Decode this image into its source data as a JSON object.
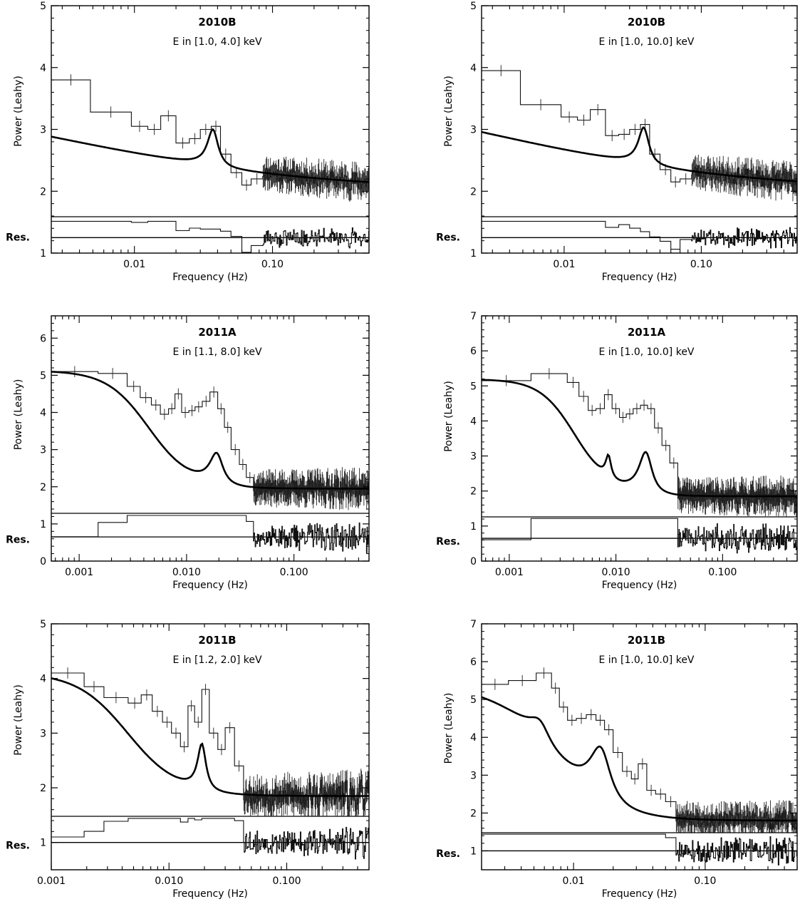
{
  "chart_data": [
    {
      "type": "line",
      "title": "2010B",
      "subtitle": "E in [1.0, 4.0] keV",
      "xlabel": "Frequency (Hz)",
      "ylabel": "Power (Leahy)",
      "residual_label": "Res.",
      "xscale": "log",
      "xlim": [
        0.0025,
        0.5
      ],
      "ylim": [
        1,
        5
      ],
      "x_ticks": [
        0.01,
        0.1
      ],
      "x_tick_labels": [
        "0.01",
        "0.10"
      ],
      "y_ticks": [
        1,
        2,
        3,
        4,
        5
      ],
      "y_tick_labels": [
        "1",
        "2",
        "3",
        "4",
        "5"
      ],
      "residual_baseline": 1.25,
      "residual_top": 1.6,
      "model": {
        "baseline": 2.0,
        "lowfreq_amp": 1.75,
        "lowfreq_break": 0.0025,
        "lowfreq_index": 0.45,
        "qpos": [
          [
            0.037,
            1.0,
            0.22
          ]
        ]
      },
      "histogram_bins": [
        {
          "x0": 0.0025,
          "x1": 0.0048,
          "y": 3.8
        },
        {
          "x0": 0.0048,
          "x1": 0.0095,
          "y": 3.28
        },
        {
          "x0": 0.0095,
          "x1": 0.0125,
          "y": 3.05
        },
        {
          "x0": 0.0125,
          "x1": 0.0155,
          "y": 3.0
        },
        {
          "x0": 0.0155,
          "x1": 0.02,
          "y": 3.22
        },
        {
          "x0": 0.02,
          "x1": 0.025,
          "y": 2.78
        },
        {
          "x0": 0.025,
          "x1": 0.03,
          "y": 2.85
        },
        {
          "x0": 0.03,
          "x1": 0.036,
          "y": 3.0
        },
        {
          "x0": 0.036,
          "x1": 0.042,
          "y": 3.05
        },
        {
          "x0": 0.042,
          "x1": 0.05,
          "y": 2.6
        },
        {
          "x0": 0.05,
          "x1": 0.06,
          "y": 2.3
        },
        {
          "x0": 0.06,
          "x1": 0.07,
          "y": 2.1
        },
        {
          "x0": 0.07,
          "x1": 0.085,
          "y": 2.2
        }
      ],
      "noise_start": 0.085,
      "noise_amp": 0.12,
      "seed": 11
    },
    {
      "type": "line",
      "title": "2010B",
      "subtitle": "E in [1.0, 10.0] keV",
      "xlabel": "Frequency (Hz)",
      "ylabel": "Power (Leahy)",
      "residual_label": "Res.",
      "xscale": "log",
      "xlim": [
        0.0025,
        0.5
      ],
      "ylim": [
        1,
        5
      ],
      "x_ticks": [
        0.01,
        0.1
      ],
      "x_tick_labels": [
        "0.01",
        "0.10"
      ],
      "y_ticks": [
        1,
        2,
        3,
        4,
        5
      ],
      "y_tick_labels": [
        "1",
        "2",
        "3",
        "4",
        "5"
      ],
      "residual_baseline": 1.25,
      "residual_top": 1.6,
      "model": {
        "baseline": 2.0,
        "lowfreq_amp": 1.9,
        "lowfreq_break": 0.0025,
        "lowfreq_index": 0.45,
        "qpos": [
          [
            0.038,
            1.0,
            0.22
          ]
        ]
      },
      "histogram_bins": [
        {
          "x0": 0.0025,
          "x1": 0.0048,
          "y": 3.95
        },
        {
          "x0": 0.0048,
          "x1": 0.0095,
          "y": 3.4
        },
        {
          "x0": 0.0095,
          "x1": 0.0125,
          "y": 3.2
        },
        {
          "x0": 0.0125,
          "x1": 0.0155,
          "y": 3.15
        },
        {
          "x0": 0.0155,
          "x1": 0.02,
          "y": 3.32
        },
        {
          "x0": 0.02,
          "x1": 0.025,
          "y": 2.9
        },
        {
          "x0": 0.025,
          "x1": 0.03,
          "y": 2.92
        },
        {
          "x0": 0.03,
          "x1": 0.036,
          "y": 3.0
        },
        {
          "x0": 0.036,
          "x1": 0.042,
          "y": 3.08
        },
        {
          "x0": 0.042,
          "x1": 0.05,
          "y": 2.6
        },
        {
          "x0": 0.05,
          "x1": 0.06,
          "y": 2.35
        },
        {
          "x0": 0.06,
          "x1": 0.07,
          "y": 2.15
        },
        {
          "x0": 0.07,
          "x1": 0.085,
          "y": 2.2
        }
      ],
      "noise_start": 0.085,
      "noise_amp": 0.12,
      "seed": 23
    },
    {
      "type": "line",
      "title": "2011A",
      "subtitle": "E in [1.1, 8.0] keV",
      "xlabel": "Frequency (Hz)",
      "ylabel": "Power (Leahy)",
      "residual_label": "Res.",
      "xscale": "log",
      "xlim": [
        0.00055,
        0.5
      ],
      "ylim": [
        0,
        6.6
      ],
      "x_ticks": [
        0.001,
        0.01,
        0.1
      ],
      "x_tick_labels": [
        "0.001",
        "0.010",
        "0.100"
      ],
      "y_ticks": [
        0,
        1,
        2,
        3,
        4,
        5,
        6
      ],
      "y_tick_labels": [
        "0",
        "1",
        "2",
        "3",
        "4",
        "5",
        "6"
      ],
      "residual_baseline": 0.65,
      "residual_top": 1.3,
      "model": {
        "baseline": 1.95,
        "lowfreq_amp": 3.15,
        "lowfreq_break": 0.0045,
        "lowfreq_index": 2.2,
        "qpos": [
          [
            0.019,
            1.4,
            0.35
          ]
        ]
      },
      "histogram_bins": [
        {
          "x0": 0.00055,
          "x1": 0.0015,
          "y": 5.1
        },
        {
          "x0": 0.0015,
          "x1": 0.0028,
          "y": 5.05
        },
        {
          "x0": 0.0028,
          "x1": 0.0037,
          "y": 4.7
        },
        {
          "x0": 0.0037,
          "x1": 0.0047,
          "y": 4.4
        },
        {
          "x0": 0.0047,
          "x1": 0.0057,
          "y": 4.2
        },
        {
          "x0": 0.0057,
          "x1": 0.0068,
          "y": 3.95
        },
        {
          "x0": 0.0068,
          "x1": 0.0078,
          "y": 4.1
        },
        {
          "x0": 0.0078,
          "x1": 0.009,
          "y": 4.5
        },
        {
          "x0": 0.009,
          "x1": 0.0105,
          "y": 4.0
        },
        {
          "x0": 0.0105,
          "x1": 0.012,
          "y": 4.05
        },
        {
          "x0": 0.012,
          "x1": 0.014,
          "y": 4.15
        },
        {
          "x0": 0.014,
          "x1": 0.0165,
          "y": 4.3
        },
        {
          "x0": 0.0165,
          "x1": 0.0195,
          "y": 4.55
        },
        {
          "x0": 0.0195,
          "x1": 0.0225,
          "y": 4.1
        },
        {
          "x0": 0.0225,
          "x1": 0.026,
          "y": 3.6
        },
        {
          "x0": 0.026,
          "x1": 0.031,
          "y": 3.0
        },
        {
          "x0": 0.031,
          "x1": 0.036,
          "y": 2.6
        },
        {
          "x0": 0.036,
          "x1": 0.042,
          "y": 2.25
        }
      ],
      "noise_start": 0.042,
      "noise_amp": 0.2,
      "seed": 37
    },
    {
      "type": "line",
      "title": "2011A",
      "subtitle": "E in [1.0, 10.0] keV",
      "xlabel": "Frequency (Hz)",
      "ylabel": "Power (Leahy)",
      "residual_label": "Res.",
      "xscale": "log",
      "xlim": [
        0.00055,
        0.5
      ],
      "ylim": [
        0,
        7
      ],
      "x_ticks": [
        0.001,
        0.01,
        0.1
      ],
      "x_tick_labels": [
        "0.001",
        "0.010",
        "0.100"
      ],
      "y_ticks": [
        0,
        1,
        2,
        3,
        4,
        5,
        6,
        7
      ],
      "y_tick_labels": [
        "0",
        "1",
        "2",
        "3",
        "4",
        "5",
        "6",
        "7"
      ],
      "residual_baseline": 0.65,
      "residual_top": 1.3,
      "model": {
        "baseline": 1.85,
        "lowfreq_amp": 3.3,
        "lowfreq_break": 0.0042,
        "lowfreq_index": 2.6,
        "qpos": [
          [
            0.0085,
            1.05,
            0.14
          ],
          [
            0.019,
            2.0,
            0.35
          ]
        ]
      },
      "histogram_bins": [
        {
          "x0": 0.00055,
          "x1": 0.0016,
          "y": 5.15
        },
        {
          "x0": 0.0016,
          "x1": 0.0035,
          "y": 5.35
        },
        {
          "x0": 0.0035,
          "x1": 0.0045,
          "y": 5.1
        },
        {
          "x0": 0.0045,
          "x1": 0.0055,
          "y": 4.7
        },
        {
          "x0": 0.0055,
          "x1": 0.0065,
          "y": 4.3
        },
        {
          "x0": 0.0065,
          "x1": 0.0078,
          "y": 4.35
        },
        {
          "x0": 0.0078,
          "x1": 0.0092,
          "y": 4.75
        },
        {
          "x0": 0.0092,
          "x1": 0.0108,
          "y": 4.35
        },
        {
          "x0": 0.0108,
          "x1": 0.0125,
          "y": 4.1
        },
        {
          "x0": 0.0125,
          "x1": 0.0145,
          "y": 4.2
        },
        {
          "x0": 0.0145,
          "x1": 0.017,
          "y": 4.35
        },
        {
          "x0": 0.017,
          "x1": 0.0198,
          "y": 4.45
        },
        {
          "x0": 0.0198,
          "x1": 0.023,
          "y": 4.35
        },
        {
          "x0": 0.023,
          "x1": 0.027,
          "y": 3.8
        },
        {
          "x0": 0.027,
          "x1": 0.032,
          "y": 3.3
        },
        {
          "x0": 0.032,
          "x1": 0.038,
          "y": 2.8
        }
      ],
      "noise_start": 0.038,
      "noise_amp": 0.2,
      "seed": 41
    },
    {
      "type": "line",
      "title": "2011B",
      "subtitle": "E in [1.2, 2.0] keV",
      "xlabel": "Frequency (Hz)",
      "ylabel": "Power (Leahy)",
      "residual_label": "Res.",
      "xscale": "log",
      "xlim": [
        0.001,
        0.5
      ],
      "ylim": [
        0.5,
        5
      ],
      "x_ticks": [
        0.001,
        0.01,
        0.1
      ],
      "x_tick_labels": [
        "0.001",
        "0.010",
        "0.100"
      ],
      "y_ticks": [
        1,
        2,
        3,
        4,
        5
      ],
      "y_tick_labels": [
        "1",
        "2",
        "3",
        "4",
        "5"
      ],
      "residual_baseline": 1.0,
      "residual_top": 1.5,
      "model": {
        "baseline": 1.85,
        "lowfreq_amp": 2.25,
        "lowfreq_break": 0.0045,
        "lowfreq_index": 2.0,
        "qpos": [
          [
            0.019,
            1.4,
            0.2
          ]
        ]
      },
      "histogram_bins": [
        {
          "x0": 0.001,
          "x1": 0.0019,
          "y": 4.1
        },
        {
          "x0": 0.0019,
          "x1": 0.0028,
          "y": 3.85
        },
        {
          "x0": 0.0028,
          "x1": 0.0045,
          "y": 3.65
        },
        {
          "x0": 0.0045,
          "x1": 0.0058,
          "y": 3.55
        },
        {
          "x0": 0.0058,
          "x1": 0.0072,
          "y": 3.7
        },
        {
          "x0": 0.0072,
          "x1": 0.0088,
          "y": 3.4
        },
        {
          "x0": 0.0088,
          "x1": 0.0105,
          "y": 3.2
        },
        {
          "x0": 0.0105,
          "x1": 0.0125,
          "y": 3.0
        },
        {
          "x0": 0.0125,
          "x1": 0.0145,
          "y": 2.75
        },
        {
          "x0": 0.0145,
          "x1": 0.0165,
          "y": 3.5
        },
        {
          "x0": 0.0165,
          "x1": 0.019,
          "y": 3.2
        },
        {
          "x0": 0.019,
          "x1": 0.022,
          "y": 3.8
        },
        {
          "x0": 0.022,
          "x1": 0.026,
          "y": 3.0
        },
        {
          "x0": 0.026,
          "x1": 0.03,
          "y": 2.7
        },
        {
          "x0": 0.03,
          "x1": 0.036,
          "y": 3.1
        },
        {
          "x0": 0.036,
          "x1": 0.043,
          "y": 2.4
        }
      ],
      "noise_start": 0.043,
      "noise_amp": 0.2,
      "seed": 53
    },
    {
      "type": "line",
      "title": "2011B",
      "subtitle": "E in [1.0, 10.0] keV",
      "xlabel": "Frequency (Hz)",
      "ylabel": "Power (Leahy)",
      "residual_label": "Res.",
      "xscale": "log",
      "xlim": [
        0.002,
        0.5
      ],
      "ylim": [
        0.5,
        7
      ],
      "x_ticks": [
        0.01,
        0.1
      ],
      "x_tick_labels": [
        "0.01",
        "0.10"
      ],
      "y_ticks": [
        1,
        2,
        3,
        4,
        5,
        6,
        7
      ],
      "y_tick_labels": [
        "1",
        "2",
        "3",
        "4",
        "5",
        "6",
        "7"
      ],
      "residual_baseline": 1.0,
      "residual_top": 1.5,
      "model": {
        "baseline": 1.8,
        "lowfreq_amp": 3.5,
        "lowfreq_break": 0.0064,
        "lowfreq_index": 1.8,
        "qpos": [
          [
            0.0055,
            0.9,
            0.45
          ],
          [
            0.016,
            2.3,
            0.45
          ]
        ]
      },
      "histogram_bins": [
        {
          "x0": 0.002,
          "x1": 0.0032,
          "y": 5.4
        },
        {
          "x0": 0.0032,
          "x1": 0.0052,
          "y": 5.5
        },
        {
          "x0": 0.0052,
          "x1": 0.0068,
          "y": 5.7
        },
        {
          "x0": 0.0068,
          "x1": 0.0078,
          "y": 5.3
        },
        {
          "x0": 0.0078,
          "x1": 0.009,
          "y": 4.8
        },
        {
          "x0": 0.009,
          "x1": 0.0105,
          "y": 4.45
        },
        {
          "x0": 0.0105,
          "x1": 0.0125,
          "y": 4.5
        },
        {
          "x0": 0.0125,
          "x1": 0.0148,
          "y": 4.6
        },
        {
          "x0": 0.0148,
          "x1": 0.0172,
          "y": 4.45
        },
        {
          "x0": 0.0172,
          "x1": 0.02,
          "y": 4.2
        },
        {
          "x0": 0.02,
          "x1": 0.0235,
          "y": 3.6
        },
        {
          "x0": 0.0235,
          "x1": 0.0275,
          "y": 3.1
        },
        {
          "x0": 0.0275,
          "x1": 0.031,
          "y": 2.9
        },
        {
          "x0": 0.031,
          "x1": 0.036,
          "y": 3.3
        },
        {
          "x0": 0.036,
          "x1": 0.042,
          "y": 2.6
        },
        {
          "x0": 0.042,
          "x1": 0.05,
          "y": 2.5
        },
        {
          "x0": 0.05,
          "x1": 0.06,
          "y": 2.3
        }
      ],
      "noise_start": 0.06,
      "noise_amp": 0.18,
      "seed": 67
    }
  ]
}
